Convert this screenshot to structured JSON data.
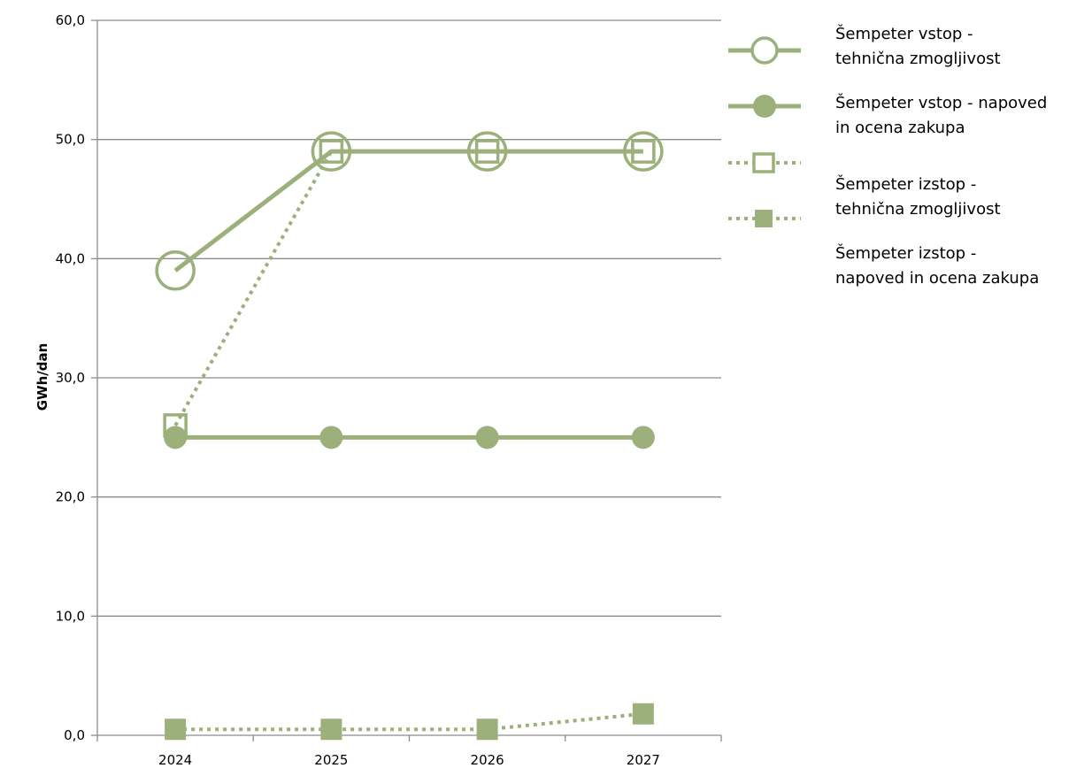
{
  "chart_data": {
    "type": "line",
    "title": "",
    "xlabel": "",
    "ylabel": "GWh/dan",
    "categories": [
      "2024",
      "2025",
      "2026",
      "2027"
    ],
    "ylim": [
      0,
      60
    ],
    "yticks": [
      "0,0",
      "10,0",
      "20,0",
      "30,0",
      "40,0",
      "50,0",
      "60,0"
    ],
    "grid": true,
    "legend_position": "right",
    "color": "#9bb07a",
    "series": [
      {
        "name": "Šempeter vstop - tehnična zmogljivost",
        "name_lines": [
          "Šempeter vstop -",
          "tehnična zmogljivost"
        ],
        "values": [
          39.0,
          49.0,
          49.0,
          49.0
        ],
        "marker": "circle-open",
        "line": "solid"
      },
      {
        "name": "Šempeter vstop - napoved in ocena zakupa",
        "name_lines": [
          "Šempeter vstop - napoved",
          "in ocena zakupa"
        ],
        "values": [
          25.0,
          25.0,
          25.0,
          25.0
        ],
        "marker": "circle-filled",
        "line": "solid"
      },
      {
        "name": "Šempeter izstop - tehnična zmogljivost",
        "name_lines": [
          "Šempeter izstop -",
          "tehnična zmogljivost"
        ],
        "values": [
          26.0,
          49.0,
          49.0,
          49.0
        ],
        "marker": "square-open",
        "line": "dotted"
      },
      {
        "name": "Šempeter izstop - napoved in ocena zakupa",
        "name_lines": [
          "Šempeter izstop -",
          "napoved in ocena zakupa"
        ],
        "values": [
          0.5,
          0.5,
          0.5,
          1.8
        ],
        "marker": "square-filled",
        "line": "dotted"
      }
    ]
  }
}
